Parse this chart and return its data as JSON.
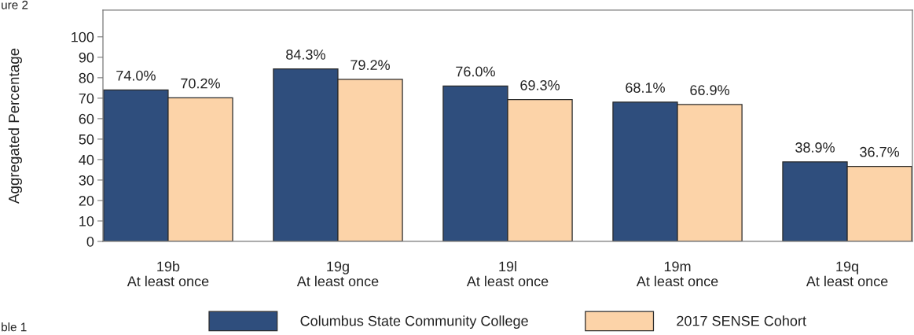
{
  "chart_data": {
    "type": "bar",
    "ylabel": "Aggregated Percentage",
    "categories": [
      "19b\nAt least once",
      "19g\nAt least once",
      "19l\nAt least once",
      "19m\nAt least once",
      "19q\nAt least once"
    ],
    "series": [
      {
        "name": "Columbus State Community College",
        "color": "#2f4e7d",
        "values": [
          74.0,
          84.3,
          76.0,
          68.1,
          38.9
        ],
        "value_labels": [
          "74.0%",
          "84.3%",
          "76.0%",
          "68.1%",
          "38.9%"
        ]
      },
      {
        "name": "2017 SENSE Cohort",
        "color": "#fcd3a8",
        "values": [
          70.2,
          79.2,
          69.3,
          66.9,
          36.7
        ],
        "value_labels": [
          "70.2%",
          "79.2%",
          "69.3%",
          "66.9%",
          "36.7%"
        ]
      }
    ],
    "ylim": [
      0,
      113
    ],
    "yticks": [
      0,
      10,
      20,
      30,
      40,
      50,
      60,
      70,
      80,
      90,
      100
    ],
    "legend": "bottom",
    "annotations": [
      "ure 2",
      "ble 1"
    ]
  }
}
